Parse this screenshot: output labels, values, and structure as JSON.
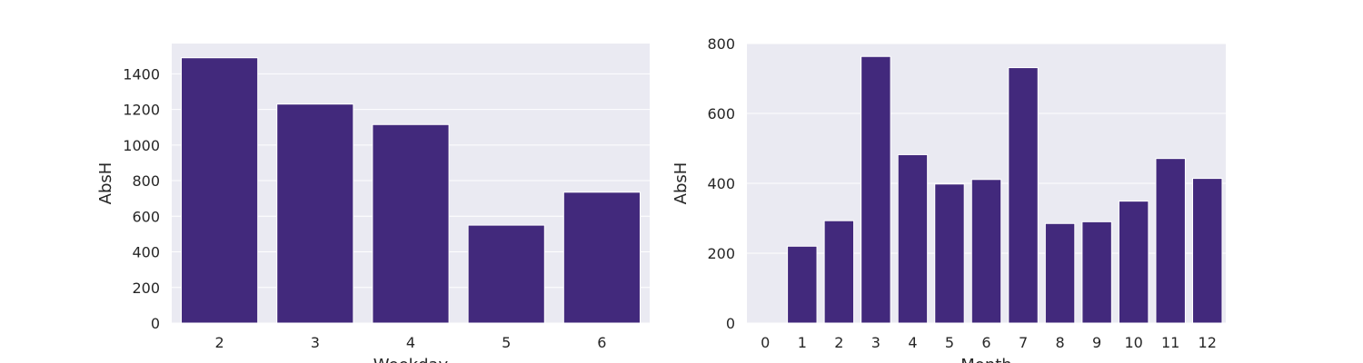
{
  "colors": {
    "bar": "#42297c",
    "plot_bg": "#eaeaf2",
    "grid": "#ffffff",
    "text": "#262626"
  },
  "chart_data": [
    {
      "type": "bar",
      "categories": [
        "2",
        "3",
        "4",
        "5",
        "6"
      ],
      "values": [
        1490,
        1230,
        1115,
        550,
        735
      ],
      "xlabel": "Weekday",
      "ylabel": "AbsH",
      "ylim": [
        0,
        1570
      ],
      "yticks": [
        0,
        200,
        400,
        600,
        800,
        1000,
        1200,
        1400
      ],
      "grid": true
    },
    {
      "type": "bar",
      "categories": [
        "0",
        "1",
        "2",
        "3",
        "4",
        "5",
        "6",
        "7",
        "8",
        "9",
        "10",
        "11",
        "12"
      ],
      "values": [
        0,
        220,
        293,
        763,
        482,
        398,
        411,
        731,
        285,
        290,
        349,
        471,
        414
      ],
      "xlabel": "Month",
      "ylabel": "AbsH",
      "ylim": [
        0,
        800
      ],
      "yticks": [
        0,
        200,
        400,
        600,
        800
      ],
      "grid": true
    }
  ]
}
